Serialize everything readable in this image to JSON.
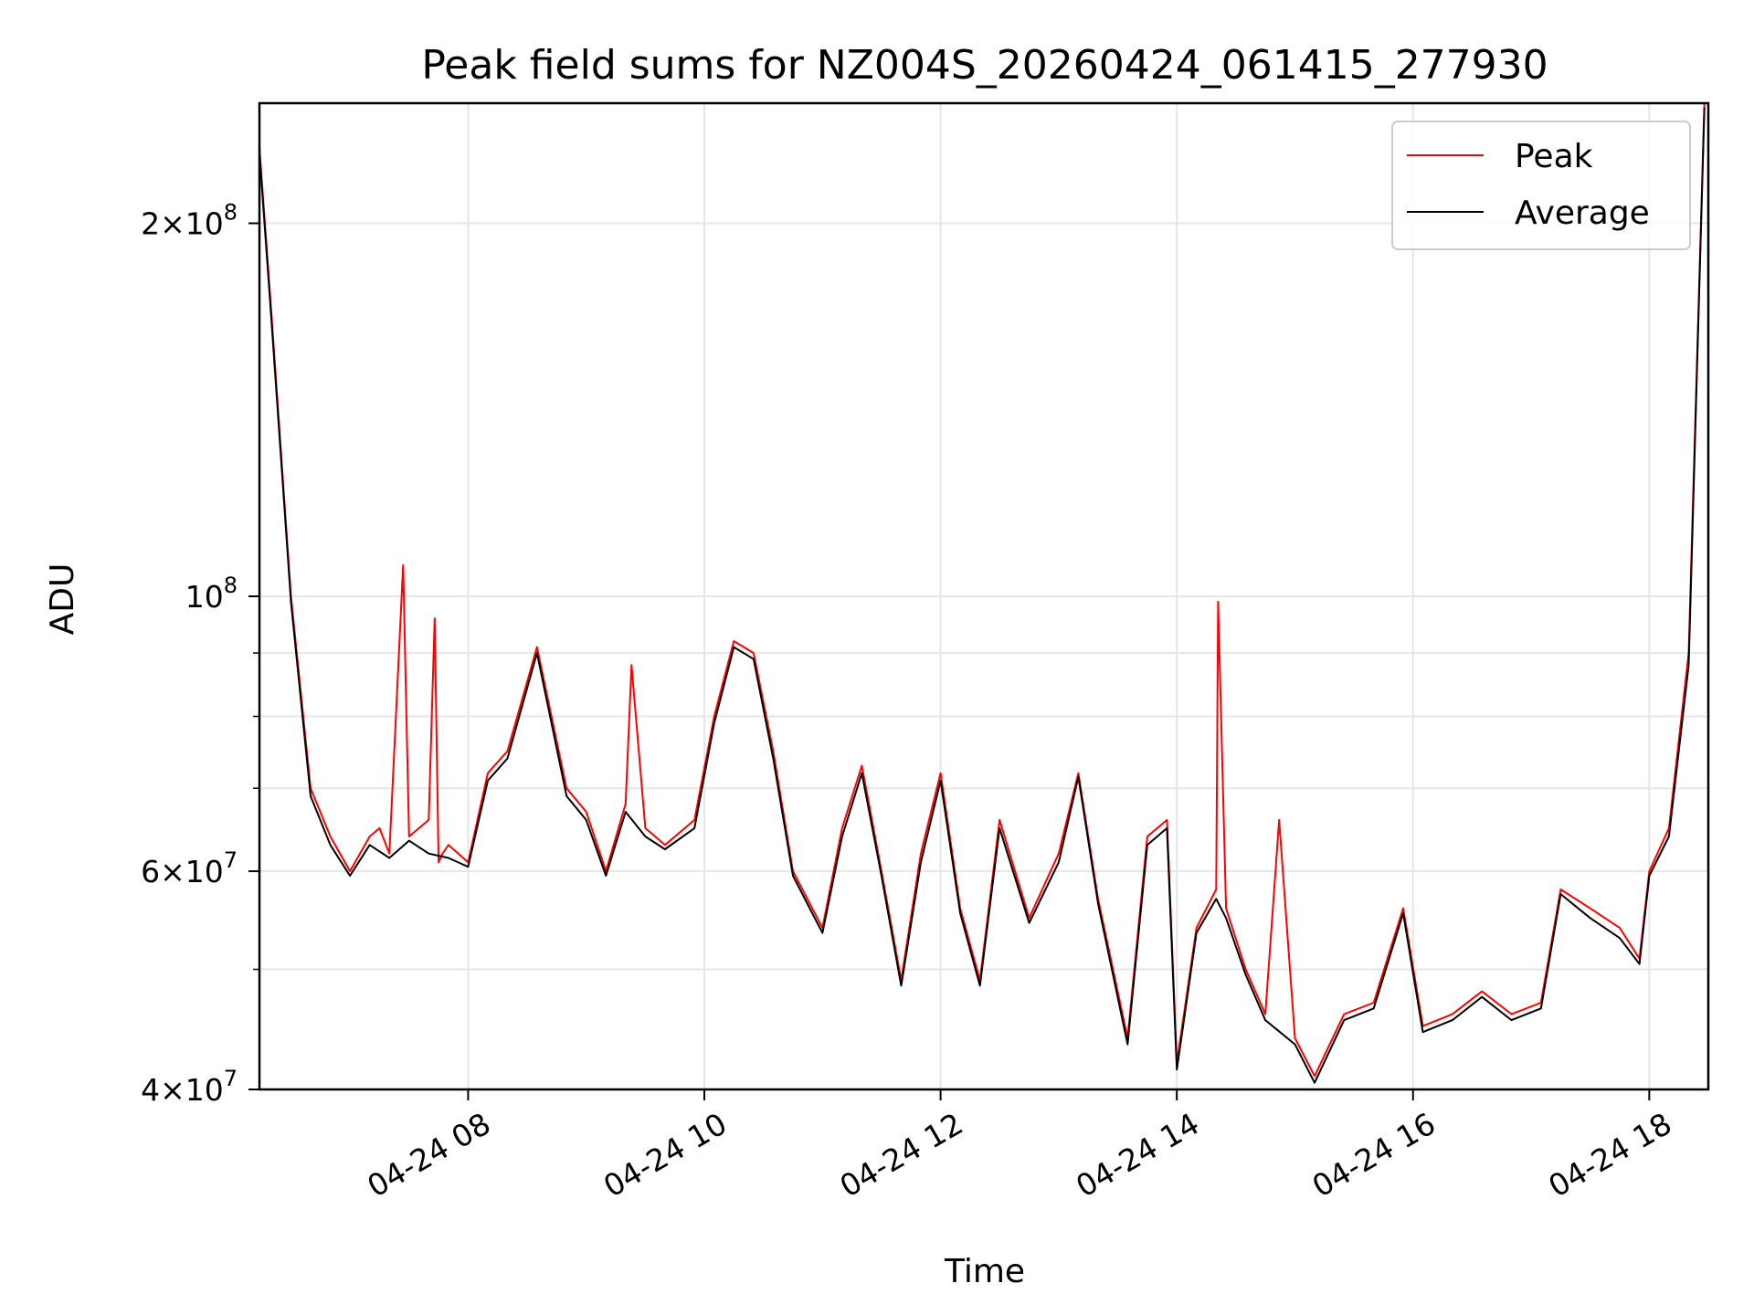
{
  "chart_data": {
    "type": "line",
    "title": "Peak field sums for NZ004S_20260424_061415_277930",
    "xlabel": "Time",
    "ylabel": "ADU",
    "y_scale": "log",
    "ylim": [
      40000000,
      250000000
    ],
    "xlim": [
      "2026-04-24 06:14",
      "2026-04-24 18:30"
    ],
    "grid": true,
    "legend_position": "top-right",
    "x_ticks": [
      {
        "t": "2026-04-24 08:00",
        "label": "04-24 08"
      },
      {
        "t": "2026-04-24 10:00",
        "label": "04-24 10"
      },
      {
        "t": "2026-04-24 12:00",
        "label": "04-24 12"
      },
      {
        "t": "2026-04-24 14:00",
        "label": "04-24 14"
      },
      {
        "t": "2026-04-24 16:00",
        "label": "04-24 16"
      },
      {
        "t": "2026-04-24 18:00",
        "label": "04-24 18"
      }
    ],
    "y_major_ticks": [
      {
        "value": 40000000,
        "mantissa": "4",
        "exp": "7"
      },
      {
        "value": 60000000,
        "mantissa": "6",
        "exp": "7"
      },
      {
        "value": 100000000,
        "mantissa": "",
        "exp": "8"
      },
      {
        "value": 200000000,
        "mantissa": "2",
        "exp": "8"
      }
    ],
    "y_minor_ticks": [
      50000000,
      70000000,
      80000000,
      90000000
    ],
    "series": [
      {
        "name": "Peak",
        "color": "#ff0000",
        "x": [
          "2026-04-24 06:14",
          "2026-04-24 06:20",
          "2026-04-24 06:30",
          "2026-04-24 06:40",
          "2026-04-24 06:50",
          "2026-04-24 07:00",
          "2026-04-24 07:10",
          "2026-04-24 07:15",
          "2026-04-24 07:20",
          "2026-04-24 07:27",
          "2026-04-24 07:30",
          "2026-04-24 07:40",
          "2026-04-24 07:43",
          "2026-04-24 07:45",
          "2026-04-24 07:47",
          "2026-04-24 07:50",
          "2026-04-24 07:55",
          "2026-04-24 08:00",
          "2026-04-24 08:10",
          "2026-04-24 08:20",
          "2026-04-24 08:35",
          "2026-04-24 08:50",
          "2026-04-24 09:00",
          "2026-04-24 09:10",
          "2026-04-24 09:20",
          "2026-04-24 09:23",
          "2026-04-24 09:30",
          "2026-04-24 09:40",
          "2026-04-24 09:55",
          "2026-04-24 10:05",
          "2026-04-24 10:15",
          "2026-04-24 10:25",
          "2026-04-24 10:35",
          "2026-04-24 10:45",
          "2026-04-24 11:00",
          "2026-04-24 11:10",
          "2026-04-24 11:20",
          "2026-04-24 11:30",
          "2026-04-24 11:40",
          "2026-04-24 11:50",
          "2026-04-24 12:00",
          "2026-04-24 12:10",
          "2026-04-24 12:20",
          "2026-04-24 12:30",
          "2026-04-24 12:45",
          "2026-04-24 13:00",
          "2026-04-24 13:10",
          "2026-04-24 13:20",
          "2026-04-24 13:35",
          "2026-04-24 13:45",
          "2026-04-24 13:55",
          "2026-04-24 14:00",
          "2026-04-24 14:10",
          "2026-04-24 14:20",
          "2026-04-24 14:21",
          "2026-04-24 14:25",
          "2026-04-24 14:35",
          "2026-04-24 14:45",
          "2026-04-24 14:52",
          "2026-04-24 15:00",
          "2026-04-24 15:10",
          "2026-04-24 15:25",
          "2026-04-24 15:40",
          "2026-04-24 15:55",
          "2026-04-24 16:05",
          "2026-04-24 16:20",
          "2026-04-24 16:35",
          "2026-04-24 16:50",
          "2026-04-24 17:05",
          "2026-04-24 17:15",
          "2026-04-24 17:30",
          "2026-04-24 17:45",
          "2026-04-24 17:55",
          "2026-04-24 18:00",
          "2026-04-24 18:10",
          "2026-04-24 18:20",
          "2026-04-24 18:28"
        ],
        "values": [
          230000000,
          170000000,
          100000000,
          70000000,
          64000000,
          60000000,
          64000000,
          65000000,
          62000000,
          106000000,
          64000000,
          66000000,
          96000000,
          61000000,
          62000000,
          63000000,
          62000000,
          61000000,
          72000000,
          75000000,
          91000000,
          70000000,
          67000000,
          60000000,
          68000000,
          88000000,
          65000000,
          63000000,
          66000000,
          80000000,
          92000000,
          90000000,
          75000000,
          60000000,
          54000000,
          65000000,
          73000000,
          60000000,
          49000000,
          62000000,
          72000000,
          56000000,
          49000000,
          66000000,
          55000000,
          62000000,
          72000000,
          57000000,
          44000000,
          64000000,
          66000000,
          42000000,
          54000000,
          58000000,
          99000000,
          56000000,
          50000000,
          46000000,
          66000000,
          44000000,
          41000000,
          46000000,
          47000000,
          56000000,
          45000000,
          46000000,
          48000000,
          46000000,
          47000000,
          58000000,
          56000000,
          54000000,
          51000000,
          60000000,
          65000000,
          90000000,
          250000000
        ]
      },
      {
        "name": "Average",
        "color": "#000000",
        "x": [
          "2026-04-24 06:14",
          "2026-04-24 06:20",
          "2026-04-24 06:30",
          "2026-04-24 06:40",
          "2026-04-24 06:50",
          "2026-04-24 07:00",
          "2026-04-24 07:10",
          "2026-04-24 07:20",
          "2026-04-24 07:30",
          "2026-04-24 07:40",
          "2026-04-24 07:50",
          "2026-04-24 08:00",
          "2026-04-24 08:10",
          "2026-04-24 08:20",
          "2026-04-24 08:35",
          "2026-04-24 08:50",
          "2026-04-24 09:00",
          "2026-04-24 09:10",
          "2026-04-24 09:20",
          "2026-04-24 09:30",
          "2026-04-24 09:40",
          "2026-04-24 09:55",
          "2026-04-24 10:05",
          "2026-04-24 10:15",
          "2026-04-24 10:25",
          "2026-04-24 10:35",
          "2026-04-24 10:45",
          "2026-04-24 11:00",
          "2026-04-24 11:10",
          "2026-04-24 11:20",
          "2026-04-24 11:30",
          "2026-04-24 11:40",
          "2026-04-24 11:50",
          "2026-04-24 12:00",
          "2026-04-24 12:10",
          "2026-04-24 12:20",
          "2026-04-24 12:30",
          "2026-04-24 12:45",
          "2026-04-24 13:00",
          "2026-04-24 13:10",
          "2026-04-24 13:20",
          "2026-04-24 13:35",
          "2026-04-24 13:45",
          "2026-04-24 13:55",
          "2026-04-24 14:00",
          "2026-04-24 14:10",
          "2026-04-24 14:20",
          "2026-04-24 14:25",
          "2026-04-24 14:35",
          "2026-04-24 14:45",
          "2026-04-24 15:00",
          "2026-04-24 15:10",
          "2026-04-24 15:25",
          "2026-04-24 15:40",
          "2026-04-24 15:55",
          "2026-04-24 16:05",
          "2026-04-24 16:20",
          "2026-04-24 16:35",
          "2026-04-24 16:50",
          "2026-04-24 17:05",
          "2026-04-24 17:15",
          "2026-04-24 17:30",
          "2026-04-24 17:45",
          "2026-04-24 17:55",
          "2026-04-24 18:00",
          "2026-04-24 18:10",
          "2026-04-24 18:20",
          "2026-04-24 18:28"
        ],
        "values": [
          228000000,
          168000000,
          99000000,
          69000000,
          63000000,
          59500000,
          63000000,
          61500000,
          63500000,
          62000000,
          61500000,
          60500000,
          71000000,
          74000000,
          90000000,
          69000000,
          66000000,
          59500000,
          67000000,
          64000000,
          62500000,
          65000000,
          79000000,
          91000000,
          89000000,
          74000000,
          59500000,
          53500000,
          64000000,
          72000000,
          59500000,
          48500000,
          61000000,
          71000000,
          55500000,
          48500000,
          65000000,
          54500000,
          61000000,
          71500000,
          56500000,
          43500000,
          63000000,
          65000000,
          41500000,
          53500000,
          57000000,
          55000000,
          49500000,
          45500000,
          43500000,
          40500000,
          45500000,
          46500000,
          55500000,
          44500000,
          45500000,
          47500000,
          45500000,
          46500000,
          57500000,
          55000000,
          53000000,
          50500000,
          59500000,
          64000000,
          88000000,
          248000000
        ]
      }
    ]
  }
}
